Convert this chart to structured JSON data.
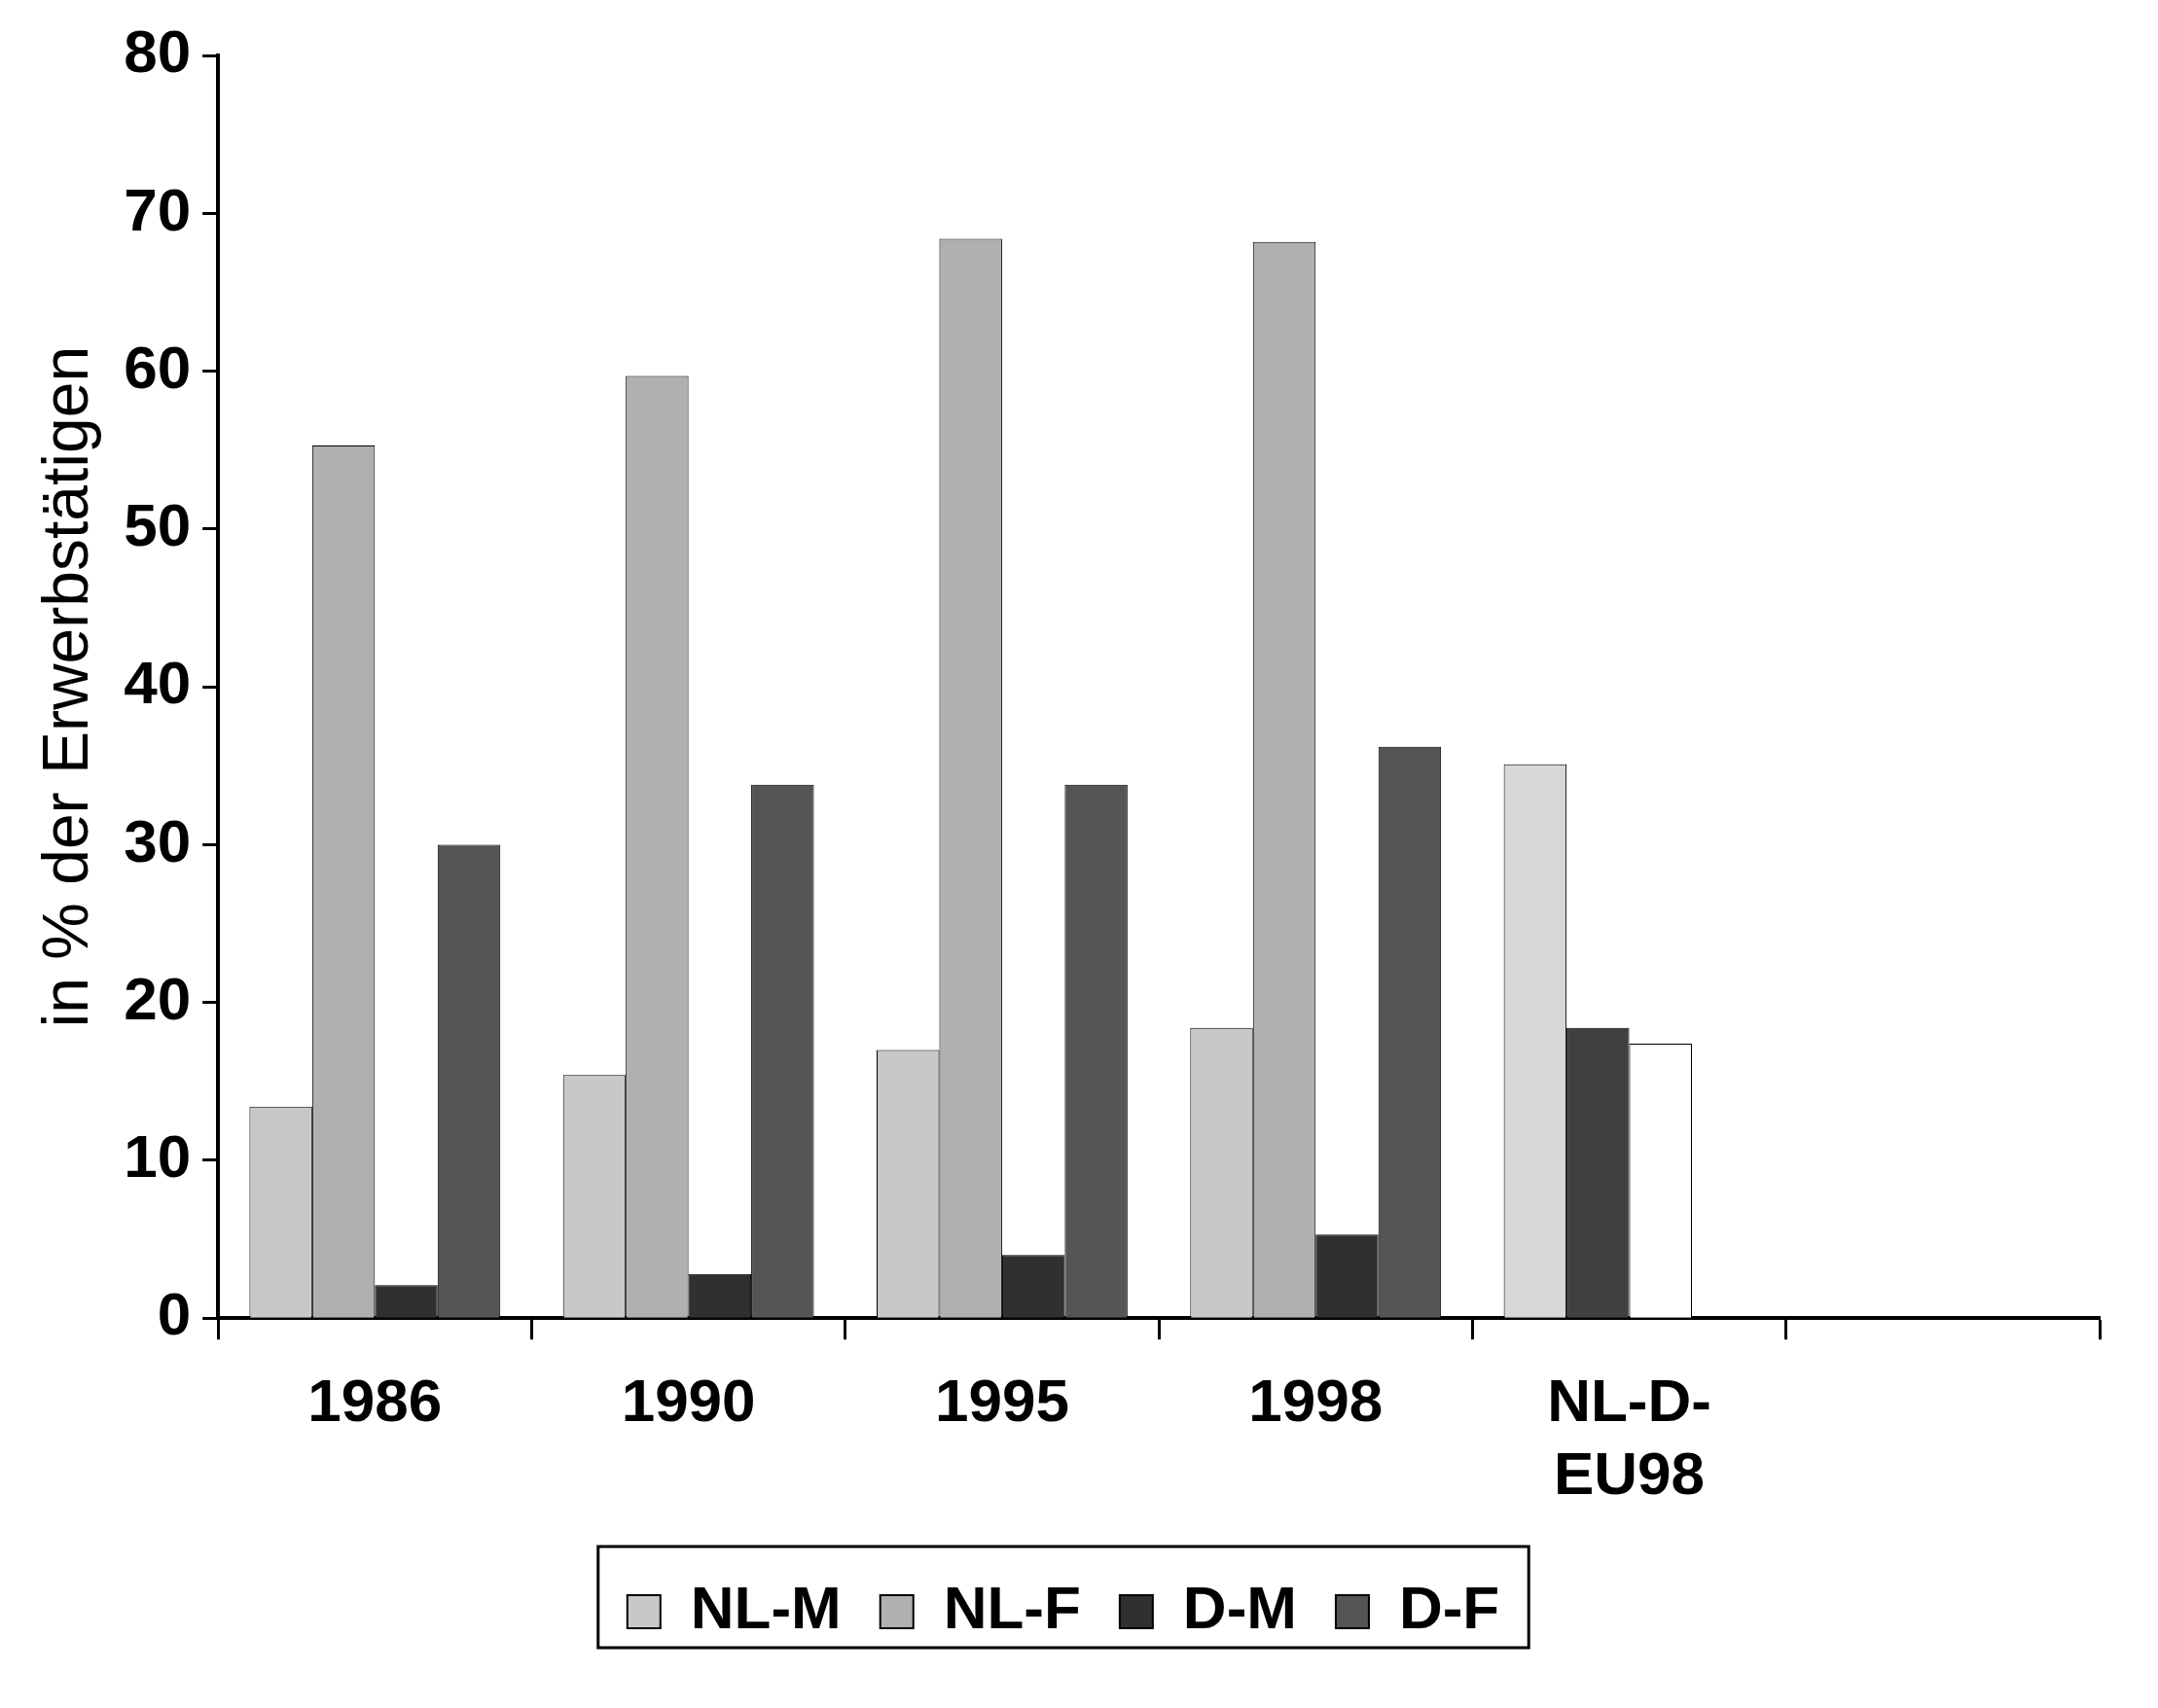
{
  "chart_data": {
    "type": "bar",
    "ylabel": "in % der Erwerbstätigen",
    "categories": [
      "1986",
      "1990",
      "1995",
      "1998",
      "NL-D-\nEU98",
      null
    ],
    "series": [
      {
        "name": "NL-M",
        "color": "#c8c8c8",
        "colors": [
          "#c8c8c8",
          "#c8c8c8",
          "#c8c8c8",
          "#c8c8c8",
          "#d8d8d8",
          "#c8c8c8"
        ],
        "values": [
          13.4,
          15.4,
          17,
          18.4,
          35.1,
          null
        ]
      },
      {
        "name": "NL-F",
        "color": "#b0b0b0",
        "colors": [
          "#b0b0b0",
          "#b0b0b0",
          "#b0b0b0",
          "#b0b0b0",
          "#404040",
          "#b0b0b0"
        ],
        "values": [
          55.3,
          59.7,
          68.4,
          68.2,
          18.4,
          null
        ]
      },
      {
        "name": "D-M",
        "color": "#303030",
        "colors": [
          "#303030",
          "#303030",
          "#303030",
          "#303030",
          "#ffffff",
          "#303030"
        ],
        "values": [
          2.1,
          2.8,
          4,
          5.3,
          17.4,
          null
        ]
      },
      {
        "name": "D-F",
        "color": "#555555",
        "values": [
          30,
          33.8,
          33.8,
          36.2,
          null,
          null
        ]
      }
    ],
    "ylim": [
      0,
      80
    ],
    "yticks": [
      0,
      10,
      20,
      30,
      40,
      50,
      60,
      70,
      80
    ],
    "grid": false,
    "legend": "bottom"
  }
}
